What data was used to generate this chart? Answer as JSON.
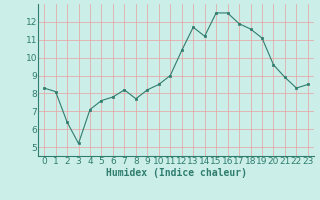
{
  "x": [
    0,
    1,
    2,
    3,
    4,
    5,
    6,
    7,
    8,
    9,
    10,
    11,
    12,
    13,
    14,
    15,
    16,
    17,
    18,
    19,
    20,
    21,
    22,
    23
  ],
  "y": [
    8.3,
    8.1,
    6.4,
    5.2,
    7.1,
    7.6,
    7.8,
    8.2,
    7.7,
    8.2,
    8.5,
    9.0,
    10.4,
    11.7,
    11.2,
    12.5,
    12.5,
    11.9,
    11.6,
    11.1,
    9.6,
    8.9,
    8.3,
    8.5
  ],
  "xlabel": "Humidex (Indice chaleur)",
  "ylim": [
    4.5,
    13.0
  ],
  "xlim": [
    -0.5,
    23.5
  ],
  "yticks": [
    5,
    6,
    7,
    8,
    9,
    10,
    11,
    12
  ],
  "xticks": [
    0,
    1,
    2,
    3,
    4,
    5,
    6,
    7,
    8,
    9,
    10,
    11,
    12,
    13,
    14,
    15,
    16,
    17,
    18,
    19,
    20,
    21,
    22,
    23
  ],
  "line_color": "#2e7d6e",
  "marker_color": "#2e7d6e",
  "bg_color": "#cceee8",
  "grid_color": "#e8a0a0",
  "xlabel_fontsize": 7,
  "tick_fontsize": 6.5,
  "linewidth": 0.8,
  "markersize": 2.0
}
